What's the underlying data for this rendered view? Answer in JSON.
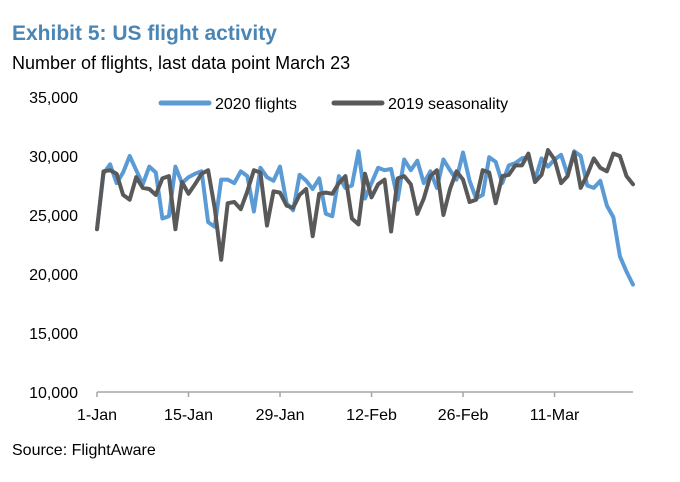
{
  "header": {
    "title": "Exhibit 5: US flight activity",
    "subtitle": "Number of flights, last data point March 23",
    "title_color": "#4a86b5"
  },
  "footer": {
    "source": "Source: FlightAware"
  },
  "chart_data": {
    "type": "line",
    "title": "",
    "xlabel": "",
    "ylabel": "",
    "ylim": [
      10000,
      35000
    ],
    "yticks": [
      10000,
      15000,
      20000,
      25000,
      30000,
      35000
    ],
    "ytick_labels": [
      "10,000",
      "15,000",
      "20,000",
      "25,000",
      "30,000",
      "35,000"
    ],
    "xlim": [
      1,
      83
    ],
    "xticks": [
      {
        "label": "1-Jan",
        "day": 1
      },
      {
        "label": "15-Jan",
        "day": 15
      },
      {
        "label": "29-Jan",
        "day": 29
      },
      {
        "label": "12-Feb",
        "day": 43
      },
      {
        "label": "26-Feb",
        "day": 57
      },
      {
        "label": "11-Mar",
        "day": 71
      }
    ],
    "grid": false,
    "legend_position": "top",
    "series": [
      {
        "name": "2020 flights",
        "color": "#5b9bd5",
        "values": [
          23800,
          28500,
          29300,
          27700,
          28600,
          30000,
          28800,
          27600,
          29100,
          28600,
          24700,
          24900,
          29100,
          27700,
          28200,
          28500,
          28700,
          24400,
          24000,
          28000,
          28000,
          27700,
          28700,
          28300,
          25300,
          29000,
          28200,
          27900,
          29100,
          26000,
          25400,
          28400,
          27900,
          27200,
          28100,
          25100,
          24900,
          28300,
          27300,
          27500,
          30400,
          26400,
          27700,
          29000,
          28800,
          28900,
          26300,
          29700,
          28800,
          29600,
          27700,
          28700,
          27300,
          29700,
          28800,
          28000,
          30300,
          27900,
          26400,
          26700,
          29900,
          29500,
          27700,
          29200,
          29400,
          29800,
          29900,
          28000,
          29800,
          29100,
          29700,
          30100,
          28400,
          30400,
          30000,
          27500,
          27300,
          27900,
          25800,
          24800,
          21500,
          20200,
          19100
        ]
      },
      {
        "name": "2019 seasonality",
        "color": "#595959",
        "values": [
          23800,
          28700,
          28800,
          28500,
          26700,
          26300,
          28200,
          27300,
          27200,
          26700,
          28100,
          28300,
          23800,
          27800,
          26800,
          27600,
          28500,
          28800,
          25600,
          21200,
          26000,
          26100,
          25500,
          27000,
          28800,
          28600,
          24100,
          27000,
          26900,
          25800,
          25600,
          26700,
          27200,
          23200,
          26800,
          26900,
          26800,
          27700,
          28300,
          24700,
          24200,
          28500,
          26500,
          27600,
          28000,
          23600,
          28100,
          28300,
          27600,
          25100,
          26400,
          28300,
          28800,
          25000,
          27200,
          28700,
          28000,
          26100,
          26300,
          28800,
          28600,
          26000,
          28300,
          28400,
          29200,
          29200,
          30200,
          27800,
          28400,
          30500,
          29700,
          27700,
          28300,
          30300,
          27300,
          28400,
          29800,
          29000,
          28700,
          30200,
          30000,
          28300,
          27600
        ]
      }
    ]
  }
}
